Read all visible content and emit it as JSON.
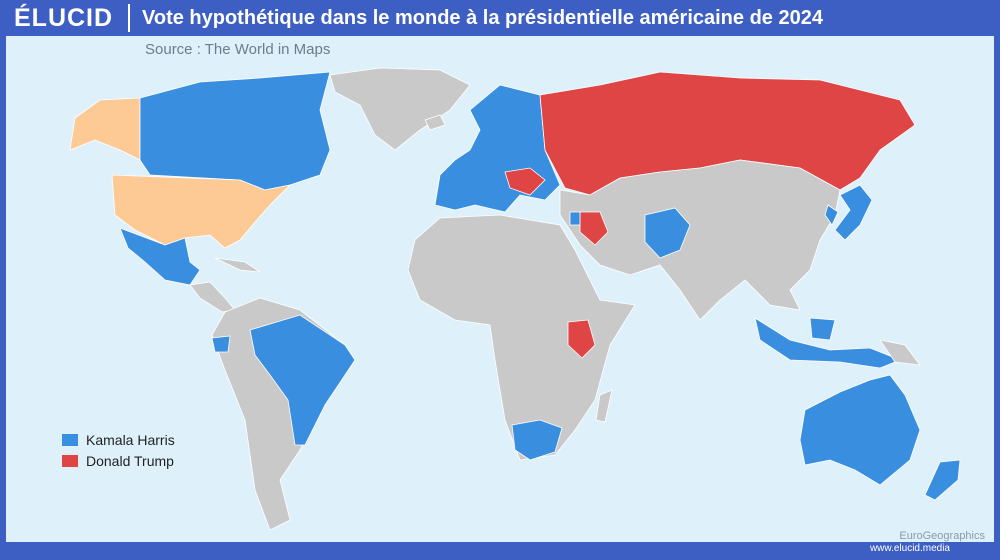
{
  "header": {
    "brand": "ÉLUCID",
    "title": "Vote hypothétique dans le monde à la présidentielle américaine de 2024"
  },
  "source": "Source : The World in Maps",
  "legend": [
    {
      "label": "Kamala Harris",
      "color": "#3a8ee0"
    },
    {
      "label": "Donald Trump",
      "color": "#e04545"
    }
  ],
  "credits": {
    "geo": "EuroGeographics",
    "site": "www.elucid.media"
  }
}
